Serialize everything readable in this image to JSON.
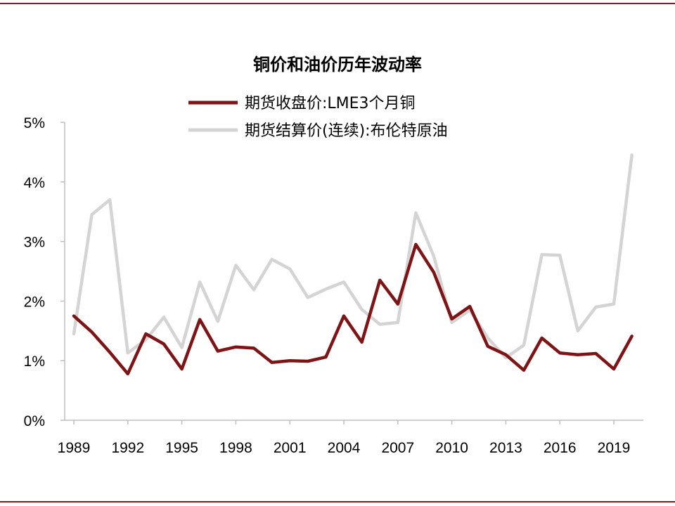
{
  "chart_data": {
    "type": "line",
    "title": "铜价和油价历年波动率",
    "xlabel": "",
    "ylabel": "",
    "ylim": [
      0,
      5
    ],
    "y_ticks": [
      "0%",
      "1%",
      "2%",
      "3%",
      "4%",
      "5%"
    ],
    "x_ticks": [
      "1989",
      "1992",
      "1995",
      "1998",
      "2001",
      "2004",
      "2007",
      "2010",
      "2013",
      "2016",
      "2019"
    ],
    "x": [
      1989,
      1990,
      1991,
      1992,
      1993,
      1994,
      1995,
      1996,
      1997,
      1998,
      1999,
      2000,
      2001,
      2002,
      2003,
      2004,
      2005,
      2006,
      2007,
      2008,
      2009,
      2010,
      2011,
      2012,
      2013,
      2014,
      2015,
      2016,
      2017,
      2018,
      2019,
      2020
    ],
    "legend_position": "top",
    "grid": false,
    "series": [
      {
        "name": "期货收盘价:LME3个月铜",
        "color": "#7f1416",
        "values": [
          1.75,
          1.48,
          1.14,
          0.78,
          1.45,
          1.28,
          0.86,
          1.69,
          1.16,
          1.23,
          1.21,
          0.97,
          1.0,
          0.99,
          1.06,
          1.75,
          1.31,
          2.35,
          1.95,
          2.95,
          2.48,
          1.7,
          1.91,
          1.24,
          1.1,
          0.84,
          1.38,
          1.13,
          1.1,
          1.12,
          0.86,
          1.41
        ]
      },
      {
        "name": "期货结算价(连续):布伦特原油",
        "color": "#d4d4d4",
        "values": [
          1.45,
          3.45,
          3.7,
          1.13,
          1.35,
          1.73,
          1.22,
          2.32,
          1.66,
          2.6,
          2.19,
          2.7,
          2.54,
          2.06,
          2.2,
          2.32,
          1.86,
          1.61,
          1.64,
          3.48,
          2.75,
          1.64,
          1.85,
          1.38,
          1.05,
          1.26,
          2.78,
          2.77,
          1.5,
          1.9,
          1.95,
          4.45
        ]
      }
    ]
  }
}
